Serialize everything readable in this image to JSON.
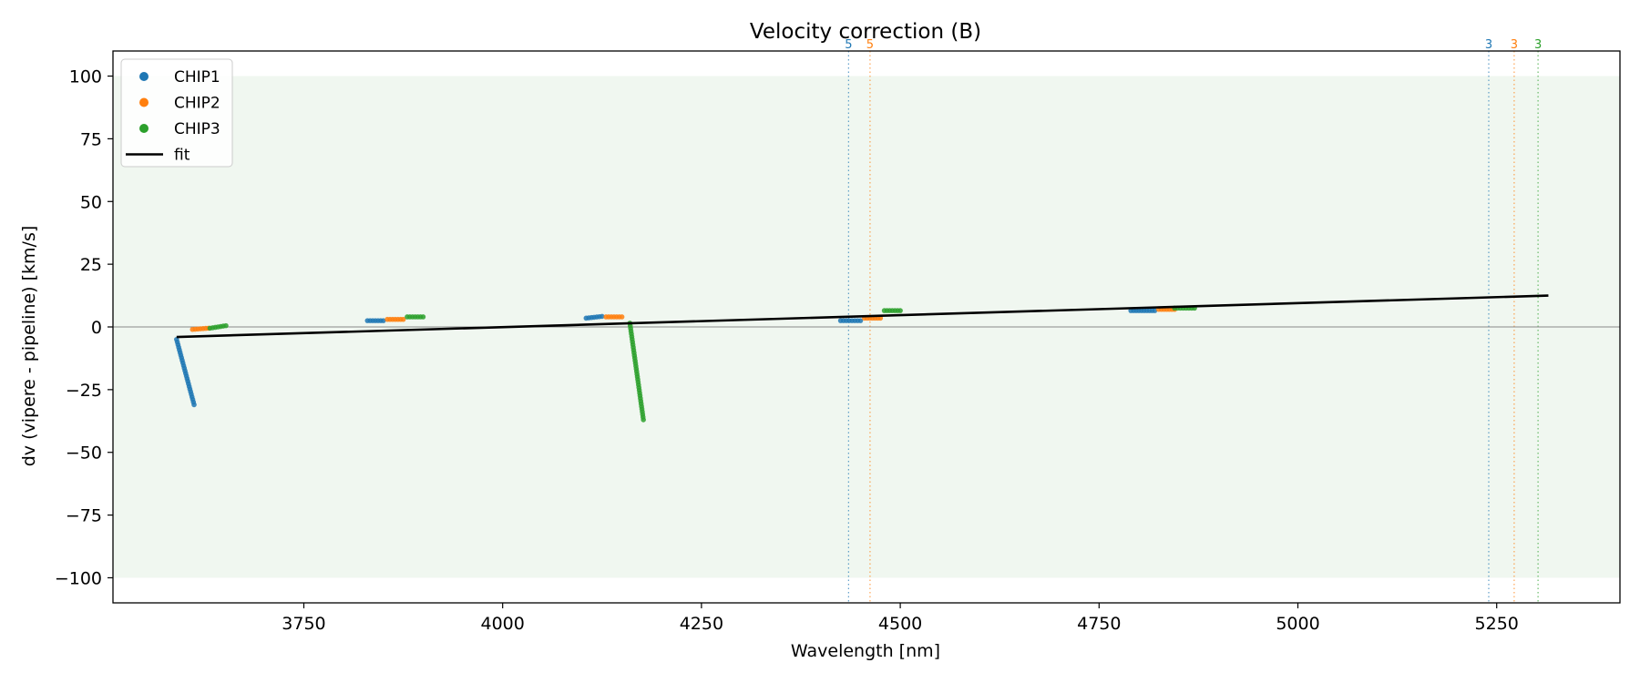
{
  "chart_data": {
    "type": "scatter",
    "title": "Velocity correction (B)",
    "xlabel": "Wavelength [nm]",
    "ylabel": "dv (vipere - pipeline) [km/s]",
    "xlim": [
      3510,
      5405
    ],
    "ylim": [
      -110,
      110
    ],
    "xticks": [
      3750,
      4000,
      4250,
      4500,
      4750,
      5000,
      5250
    ],
    "yticks": [
      100,
      75,
      50,
      25,
      0,
      -25,
      -50,
      -75,
      -100
    ],
    "tick_labels_x": [
      "3750",
      "4000",
      "4250",
      "4500",
      "4750",
      "5000",
      "5250"
    ],
    "tick_labels_y": [
      "100",
      "75",
      "50",
      "25",
      "0",
      "−25",
      "−50",
      "−75",
      "−100"
    ],
    "shaded_band": {
      "y0": -100,
      "y1": 100,
      "color": "#f0f7f0"
    },
    "zero_line": {
      "y": 0,
      "color": "#888888"
    },
    "grid": false,
    "legend": {
      "position": "top-left",
      "entries": [
        {
          "label": "CHIP1",
          "kind": "marker",
          "color": "#1f77b4"
        },
        {
          "label": "CHIP2",
          "kind": "marker",
          "color": "#ff7f0e"
        },
        {
          "label": "CHIP3",
          "kind": "marker",
          "color": "#2ca02c"
        },
        {
          "label": "fit",
          "kind": "line",
          "color": "#000000"
        }
      ]
    },
    "fit": {
      "name": "fit",
      "color": "#000000",
      "x": [
        3590,
        5315
      ],
      "y": [
        -4,
        12.5
      ]
    },
    "series": [
      {
        "name": "CHIP1",
        "color": "#1f77b4",
        "segments": [
          {
            "x": [
              3590,
              3612
            ],
            "y": [
              -5,
              -31
            ]
          },
          {
            "x": [
              3830,
              3850
            ],
            "y": [
              2.5,
              2.5
            ]
          },
          {
            "x": [
              4105,
              4125
            ],
            "y": [
              3.5,
              4.2
            ]
          },
          {
            "x": [
              4425,
              4450
            ],
            "y": [
              2.5,
              2.5
            ]
          },
          {
            "x": [
              4790,
              4820
            ],
            "y": [
              6.5,
              6.5
            ]
          }
        ]
      },
      {
        "name": "CHIP2",
        "color": "#ff7f0e",
        "segments": [
          {
            "x": [
              3610,
              3630
            ],
            "y": [
              -1,
              -0.5
            ]
          },
          {
            "x": [
              3855,
              3875
            ],
            "y": [
              3,
              3
            ]
          },
          {
            "x": [
              4130,
              4150
            ],
            "y": [
              4,
              4
            ]
          },
          {
            "x": [
              4455,
              4475
            ],
            "y": [
              3.5,
              3.5
            ]
          },
          {
            "x": [
              4825,
              4845
            ],
            "y": [
              7,
              7
            ]
          }
        ]
      },
      {
        "name": "CHIP3",
        "color": "#2ca02c",
        "segments": [
          {
            "x": [
              3632,
              3652
            ],
            "y": [
              -0.5,
              0.5
            ]
          },
          {
            "x": [
              3880,
              3900
            ],
            "y": [
              4,
              4
            ]
          },
          {
            "x": [
              4160,
              4177
            ],
            "y": [
              1.5,
              -37
            ]
          },
          {
            "x": [
              4480,
              4500
            ],
            "y": [
              6.5,
              6.5
            ]
          },
          {
            "x": [
              4845,
              4870
            ],
            "y": [
              7.5,
              7.5
            ]
          }
        ]
      }
    ],
    "vertical_markers": [
      {
        "x": 4435,
        "label": "5",
        "color": "#1f77b4"
      },
      {
        "x": 4462,
        "label": "5",
        "color": "#ff7f0e"
      },
      {
        "x": 5240,
        "label": "3",
        "color": "#1f77b4"
      },
      {
        "x": 5272,
        "label": "3",
        "color": "#ff7f0e"
      },
      {
        "x": 5302,
        "label": "3",
        "color": "#2ca02c"
      }
    ]
  }
}
